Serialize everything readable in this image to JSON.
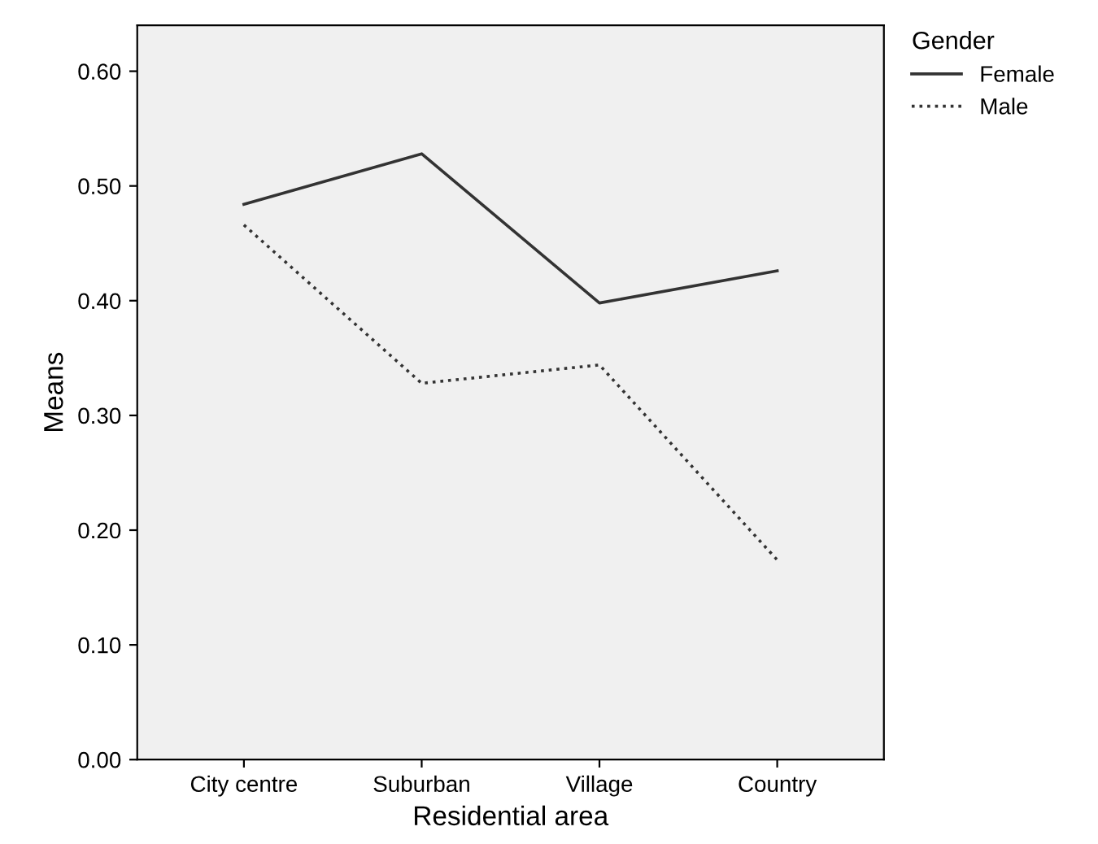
{
  "chart_data": {
    "type": "line",
    "xlabel": "Residential area",
    "ylabel": "Means",
    "legend_title": "Gender",
    "categories": [
      "City centre",
      "Suburban",
      "Village",
      "Country"
    ],
    "series": [
      {
        "name": "Female",
        "color": "#333333",
        "values": [
          0.484,
          0.528,
          0.398,
          0.426
        ],
        "line_style": "solid"
      },
      {
        "name": "Male",
        "color": "#333333",
        "values": [
          0.466,
          0.328,
          0.344,
          0.174
        ],
        "line_style": "dotted"
      }
    ],
    "ylim": [
      0,
      0.64
    ],
    "yticks": [
      {
        "value": 0,
        "label": "0.00"
      },
      {
        "value": 0.1,
        "label": "0.10"
      },
      {
        "value": 0.2,
        "label": "0.20"
      },
      {
        "value": 0.3,
        "label": "0.30"
      },
      {
        "value": 0.4,
        "label": "0.40"
      },
      {
        "value": 0.5,
        "label": "0.50"
      },
      {
        "value": 0.6,
        "label": "0.60"
      }
    ],
    "grid": false,
    "legend": "top right",
    "marker": "none"
  }
}
